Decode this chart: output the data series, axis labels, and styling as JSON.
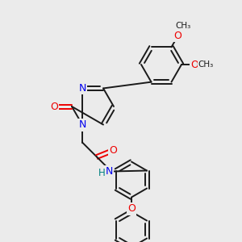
{
  "background_color": "#ebebeb",
  "bond_color": "#1a1a1a",
  "atom_colors": {
    "N": "#0000ee",
    "O": "#ee0000",
    "H": "#008080",
    "C": "#1a1a1a"
  },
  "lw": 1.4,
  "sep": 2.5,
  "fs": 8.5
}
